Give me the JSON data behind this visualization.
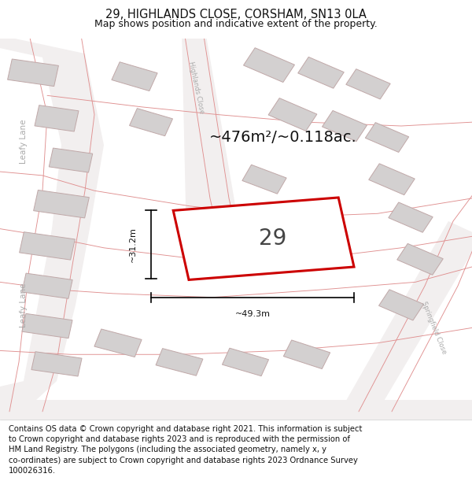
{
  "title": "29, HIGHLANDS CLOSE, CORSHAM, SN13 0LA",
  "subtitle": "Map shows position and indicative extent of the property.",
  "footer": "Contains OS data © Crown copyright and database right 2021. This information is subject\nto Crown copyright and database rights 2023 and is reproduced with the permission of\nHM Land Registry. The polygons (including the associated geometry, namely x, y\nco-ordinates) are subject to Crown copyright and database rights 2023 Ordnance Survey\n100026316.",
  "area_label": "~476m²/~0.118ac.",
  "width_label": "~49.3m",
  "height_label": "~31.2m",
  "number_label": "29",
  "map_bg": "#eae7e7",
  "building_fill": "#d3d0d0",
  "building_edge": "#c0a8a8",
  "road_fill": "#f2efef",
  "highlight_color": "#cc0000",
  "title_fontsize": 10.5,
  "subtitle_fontsize": 9,
  "footer_fontsize": 7.2,
  "label_color": "#aaaaaa",
  "dim_color": "#111111"
}
